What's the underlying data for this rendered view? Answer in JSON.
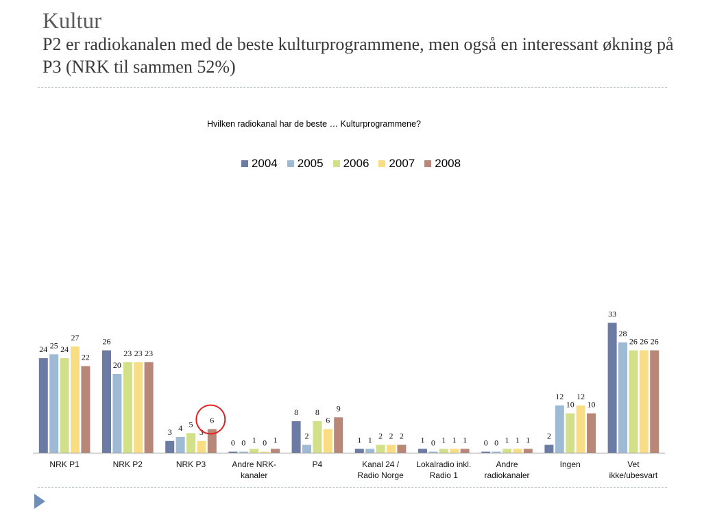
{
  "slide": {
    "title": "Kultur",
    "subtitle": "P2 er radiokanalen med de beste kulturprogrammene, men også en interessant økning på P3 (NRK til sammen 52%)"
  },
  "chart_data": {
    "type": "bar",
    "title": "Hvilken radiokanal har de beste … Kulturprogrammene?",
    "xlabel": "",
    "ylabel": "",
    "grid": false,
    "legend_position": "top-center",
    "categories": [
      [
        "NRK P1"
      ],
      [
        "NRK P2"
      ],
      [
        "NRK P3"
      ],
      [
        "Andre NRK-",
        "kanaler"
      ],
      [
        "P4"
      ],
      [
        "Kanal 24 /",
        "Radio Norge"
      ],
      [
        "Lokalradio inkl.",
        "Radio 1"
      ],
      [
        "Andre",
        "radiokanaler"
      ],
      [
        "Ingen"
      ],
      [
        "Vet",
        "ikke/ubesvart"
      ]
    ],
    "series": [
      {
        "name": "2004",
        "color": "#6b7ba3",
        "values": [
          24,
          26,
          3,
          0,
          8,
          1,
          1,
          0,
          2,
          33
        ]
      },
      {
        "name": "2005",
        "color": "#9fbad4",
        "values": [
          25,
          20,
          4,
          0,
          2,
          1,
          0,
          0,
          12,
          28
        ]
      },
      {
        "name": "2006",
        "color": "#d2e08a",
        "values": [
          24,
          23,
          5,
          1,
          8,
          2,
          1,
          1,
          10,
          26
        ]
      },
      {
        "name": "2007",
        "color": "#f9dd84",
        "values": [
          27,
          23,
          3,
          0,
          6,
          2,
          1,
          1,
          12,
          26
        ]
      },
      {
        "name": "2008",
        "color": "#b98777",
        "values": [
          22,
          23,
          6,
          1,
          9,
          2,
          1,
          1,
          10,
          26
        ]
      }
    ],
    "highlight": {
      "category_index": 2,
      "series_index": 4,
      "color": "#e02020"
    }
  }
}
